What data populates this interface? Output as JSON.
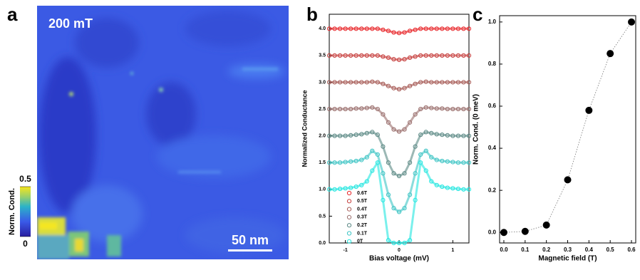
{
  "chart_data": [
    {
      "type": "image",
      "panel_label": "a",
      "annotation": "200 mT",
      "scale_bar": "50 nm",
      "colorbar_label": "Norm. Cond.",
      "clim": [
        0,
        0.5
      ],
      "cticks": [
        0,
        0.5
      ]
    },
    {
      "type": "line",
      "panel_label": "b",
      "xlabel": "Bias voltage (mV)",
      "ylabel": "Normalized Conductance",
      "x": [
        -1.3,
        -1.2,
        -1.1,
        -1.0,
        -0.9,
        -0.8,
        -0.7,
        -0.6,
        -0.5,
        -0.4,
        -0.3,
        -0.2,
        -0.1,
        0,
        0.1,
        0.2,
        0.3,
        0.4,
        0.5,
        0.6,
        0.7,
        0.8,
        0.9,
        1.0,
        1.1,
        1.2,
        1.3
      ],
      "xlim": [
        -1.3,
        1.3
      ],
      "xticks": [
        -1,
        0,
        1
      ],
      "ylim": [
        0,
        4.27
      ],
      "yticks": [
        {
          "value": 0,
          "label": "0.0"
        },
        0.5,
        {
          "value": 1,
          "label": "1.0"
        },
        1.5,
        {
          "value": 2,
          "label": "2.0"
        },
        2.5,
        {
          "value": 3,
          "label": "3.0"
        },
        3.5,
        {
          "value": 4,
          "label": "4.0"
        }
      ],
      "series": [
        {
          "name": "0.6T",
          "color": "#e8262a",
          "values": [
            4.0,
            4.0,
            4.0,
            4.0,
            4.0,
            4.0,
            4.0,
            4.0,
            4.0,
            4.0,
            3.98,
            3.96,
            3.93,
            3.92,
            3.93,
            3.96,
            3.98,
            4.0,
            4.0,
            4.0,
            4.0,
            4.0,
            4.0,
            4.0,
            4.0,
            4.0,
            4.0
          ]
        },
        {
          "name": "0.5T",
          "color": "#c63e3c",
          "values": [
            3.5,
            3.5,
            3.5,
            3.5,
            3.5,
            3.5,
            3.5,
            3.5,
            3.5,
            3.5,
            3.48,
            3.46,
            3.43,
            3.42,
            3.43,
            3.46,
            3.48,
            3.5,
            3.5,
            3.5,
            3.5,
            3.5,
            3.5,
            3.5,
            3.5,
            3.5,
            3.5
          ]
        },
        {
          "name": "0.4T",
          "color": "#a65a55",
          "values": [
            3.0,
            3.0,
            3.0,
            3.0,
            3.0,
            3.0,
            3.0,
            3.0,
            3.01,
            3.0,
            2.97,
            2.93,
            2.89,
            2.87,
            2.89,
            2.93,
            2.97,
            3.0,
            3.01,
            3.0,
            3.0,
            3.0,
            3.0,
            3.0,
            3.0,
            3.0,
            3.0
          ]
        },
        {
          "name": "0.3T",
          "color": "#9a6e6c",
          "values": [
            2.5,
            2.5,
            2.5,
            2.5,
            2.5,
            2.51,
            2.51,
            2.52,
            2.53,
            2.5,
            2.4,
            2.25,
            2.12,
            2.08,
            2.12,
            2.25,
            2.4,
            2.5,
            2.53,
            2.52,
            2.51,
            2.51,
            2.5,
            2.5,
            2.5,
            2.5,
            2.5
          ]
        },
        {
          "name": "0.2T",
          "color": "#5a8884",
          "values": [
            2.0,
            2.0,
            2.0,
            2.0,
            2.01,
            2.02,
            2.03,
            2.05,
            2.07,
            2.02,
            1.8,
            1.5,
            1.3,
            1.25,
            1.3,
            1.5,
            1.8,
            2.02,
            2.07,
            2.05,
            2.03,
            2.02,
            2.01,
            2.0,
            2.0,
            2.0,
            2.0
          ]
        },
        {
          "name": "0.1T",
          "color": "#3cc4c4",
          "values": [
            1.5,
            1.5,
            1.5,
            1.51,
            1.52,
            1.53,
            1.55,
            1.6,
            1.72,
            1.65,
            1.3,
            0.9,
            0.65,
            0.58,
            0.65,
            0.9,
            1.3,
            1.65,
            1.72,
            1.6,
            1.55,
            1.53,
            1.52,
            1.51,
            1.5,
            1.5,
            1.5
          ]
        },
        {
          "name": "0T",
          "color": "#22e6e0",
          "values": [
            1.0,
            1.0,
            1.01,
            1.02,
            1.03,
            1.05,
            1.08,
            1.15,
            1.35,
            1.5,
            0.8,
            0.05,
            0,
            0,
            0,
            0.05,
            0.8,
            1.5,
            1.35,
            1.15,
            1.08,
            1.05,
            1.03,
            1.02,
            1.01,
            1.0,
            1.0
          ]
        }
      ]
    },
    {
      "type": "scatter",
      "panel_label": "c",
      "xlabel": "Magnetic field (T)",
      "ylabel": "Norm. Cond. (0 meV)",
      "x": [
        0,
        0.1,
        0.2,
        0.3,
        0.4,
        0.5,
        0.6
      ],
      "values": [
        0,
        0.005,
        0.035,
        0.25,
        0.58,
        0.85,
        1.0
      ],
      "color": "#000000",
      "xlim": [
        -0.02,
        0.62
      ],
      "xticks": [
        {
          "value": 0,
          "label": "0.0"
        },
        0.1,
        0.2,
        0.3,
        0.4,
        0.5,
        0.6
      ],
      "ylim": [
        -0.05,
        1.03
      ],
      "yticks": [
        {
          "value": 0,
          "label": "0.0"
        },
        0.2,
        0.4,
        0.6,
        0.8,
        {
          "value": 1,
          "label": "1.0"
        }
      ]
    }
  ]
}
